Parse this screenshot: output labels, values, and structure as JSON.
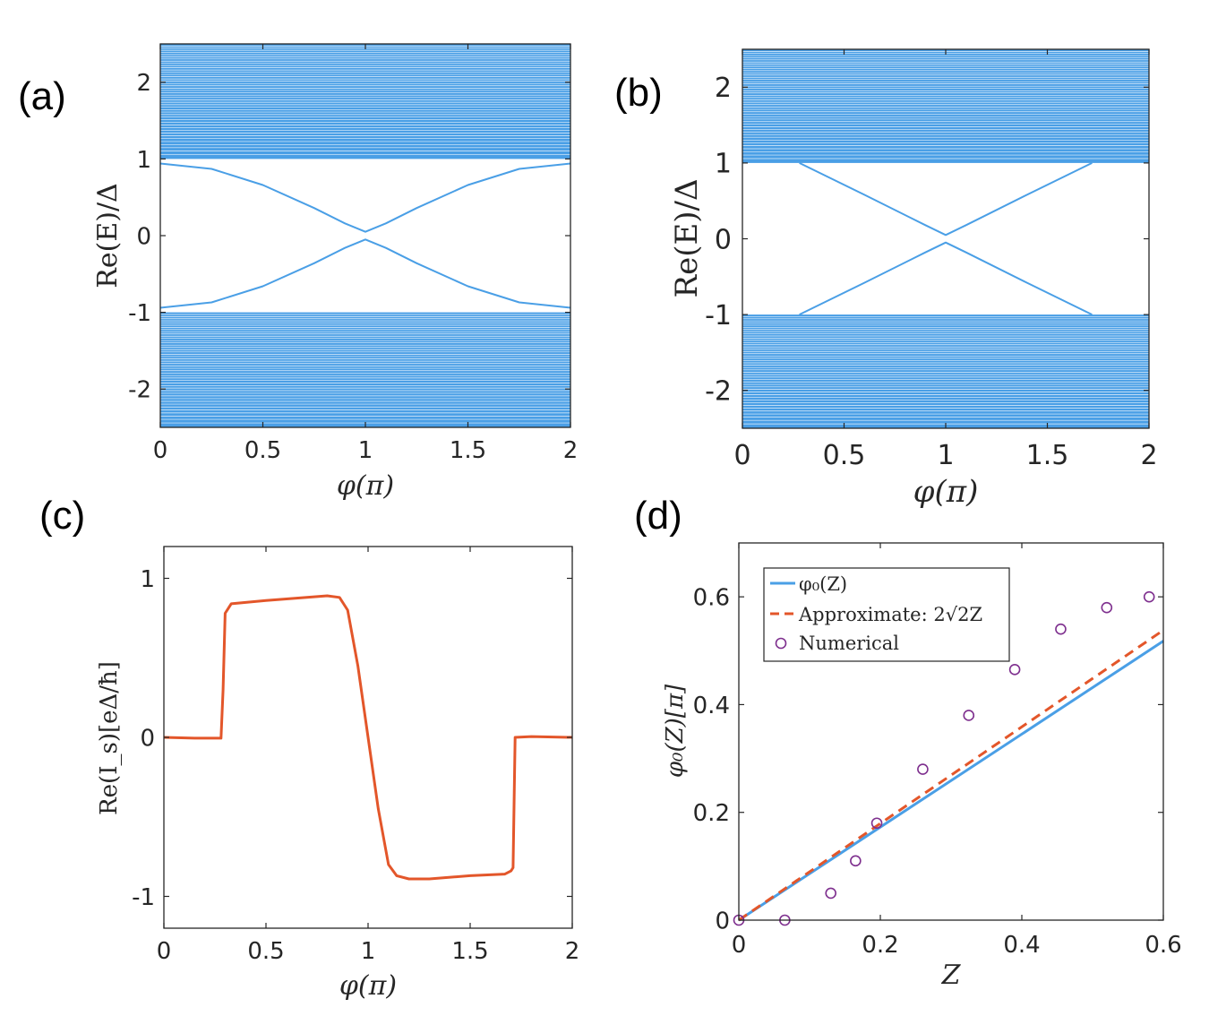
{
  "colors": {
    "blue": "#4a9fe6",
    "orange": "#e3562a",
    "purple": "#7e2f8e",
    "axis": "#262626"
  },
  "chart_data": [
    {
      "panel": "(a)",
      "type": "line",
      "title": "",
      "xlabel": "φ(π)",
      "ylabel": "Re(E)/Δ",
      "xlim": [
        0,
        2
      ],
      "ylim": [
        -2.5,
        2.5
      ],
      "xticks": [
        0,
        0.5,
        1,
        1.5,
        2
      ],
      "xtick_labels": [
        "0",
        "0.5",
        "1",
        "1.5",
        "2"
      ],
      "yticks": [
        -2,
        -1,
        0,
        1,
        2
      ],
      "ytick_labels": [
        "-2",
        "-1",
        "0",
        "1",
        "2"
      ],
      "continuum_bands": [
        {
          "from": 1,
          "to": 2.5
        },
        {
          "from": -2.5,
          "to": -1
        }
      ],
      "bound_state_min_gap": 0.05,
      "bound_state_edge": 0.94,
      "series": [
        {
          "name": "upper bound state",
          "x": [
            0,
            0.25,
            0.5,
            0.75,
            0.9,
            1,
            1.1,
            1.25,
            1.5,
            1.75,
            2
          ],
          "y": [
            0.94,
            0.87,
            0.66,
            0.36,
            0.16,
            0.05,
            0.16,
            0.36,
            0.66,
            0.87,
            0.94
          ]
        },
        {
          "name": "lower bound state",
          "x": [
            0,
            0.25,
            0.5,
            0.75,
            0.9,
            1,
            1.1,
            1.25,
            1.5,
            1.75,
            2
          ],
          "y": [
            -0.94,
            -0.87,
            -0.66,
            -0.36,
            -0.16,
            -0.05,
            -0.16,
            -0.36,
            -0.66,
            -0.87,
            -0.94
          ]
        }
      ]
    },
    {
      "panel": "(b)",
      "type": "line",
      "title": "",
      "xlabel": "φ(π)",
      "ylabel": "Re(E)/Δ",
      "xlim": [
        0,
        2
      ],
      "ylim": [
        -2.5,
        2.5
      ],
      "xticks": [
        0,
        0.5,
        1,
        1.5,
        2
      ],
      "xtick_labels": [
        "0",
        "0.5",
        "1",
        "1.5",
        "2"
      ],
      "yticks": [
        -2,
        -1,
        0,
        1,
        2
      ],
      "ytick_labels": [
        "-2",
        "-1",
        "0",
        "1",
        "2"
      ],
      "continuum_bands": [
        {
          "from": 1,
          "to": 2.5
        },
        {
          "from": -2.5,
          "to": -1
        }
      ],
      "series": [
        {
          "name": "upper bound state",
          "x": [
            0.28,
            0.6,
            0.9,
            1,
            1.1,
            1.4,
            1.72
          ],
          "y": [
            1.0,
            0.58,
            0.18,
            0.05,
            0.18,
            0.58,
            1.0
          ]
        },
        {
          "name": "lower bound state",
          "x": [
            0.28,
            0.6,
            0.9,
            1,
            1.1,
            1.4,
            1.72
          ],
          "y": [
            -1.0,
            -0.58,
            -0.18,
            -0.05,
            -0.18,
            -0.58,
            -1.0
          ]
        }
      ]
    },
    {
      "panel": "(c)",
      "type": "line",
      "title": "",
      "xlabel": "φ(π)",
      "ylabel": "Re(I_s)[eΔ/ħ]",
      "xlim": [
        0,
        2
      ],
      "ylim": [
        -1.2,
        1.2
      ],
      "xticks": [
        0,
        0.5,
        1,
        1.5,
        2
      ],
      "xtick_labels": [
        "0",
        "0.5",
        "1",
        "1.5",
        "2"
      ],
      "yticks": [
        -1,
        0,
        1
      ],
      "ytick_labels": [
        "-1",
        "0",
        "1"
      ],
      "series": [
        {
          "name": "current",
          "x": [
            0,
            0.15,
            0.28,
            0.29,
            0.3,
            0.33,
            0.5,
            0.7,
            0.8,
            0.86,
            0.9,
            0.95,
            1.0,
            1.05,
            1.1,
            1.14,
            1.2,
            1.3,
            1.5,
            1.67,
            1.7,
            1.71,
            1.72,
            1.8,
            2.0
          ],
          "y": [
            0,
            -0.005,
            -0.005,
            0.3,
            0.78,
            0.84,
            0.86,
            0.88,
            0.89,
            0.88,
            0.8,
            0.45,
            0.0,
            -0.45,
            -0.8,
            -0.87,
            -0.89,
            -0.89,
            -0.87,
            -0.86,
            -0.84,
            -0.82,
            0.0,
            0.005,
            0.0
          ]
        }
      ]
    },
    {
      "panel": "(d)",
      "type": "line",
      "title": "",
      "xlabel": "Z",
      "ylabel": "φ₀(Z)[π]",
      "xlim": [
        0,
        0.6
      ],
      "ylim": [
        0,
        0.7
      ],
      "xticks": [
        0,
        0.2,
        0.4,
        0.6
      ],
      "xtick_labels": [
        "0",
        "0.2",
        "0.4",
        "0.6"
      ],
      "yticks": [
        0,
        0.2,
        0.4,
        0.6
      ],
      "ytick_labels": [
        "0",
        "0.2",
        "0.4",
        "0.6"
      ],
      "legend_placement": "top-left",
      "series": [
        {
          "name": "φ₀(Z)",
          "style": "solid",
          "x": [
            0,
            0.6
          ],
          "y": [
            0,
            0.518
          ]
        },
        {
          "name": "Approximate: 2√2Z",
          "style": "dashed",
          "x": [
            0,
            0.6
          ],
          "y": [
            0,
            0.538
          ]
        },
        {
          "name": "Numerical",
          "style": "markers",
          "x": [
            0,
            0.065,
            0.13,
            0.165,
            0.195,
            0.26,
            0.325,
            0.39,
            0.455,
            0.52,
            0.58
          ],
          "y": [
            0,
            0,
            0.05,
            0.11,
            0.18,
            0.28,
            0.38,
            0.465,
            0.54,
            0.58,
            0.6
          ]
        }
      ]
    }
  ]
}
